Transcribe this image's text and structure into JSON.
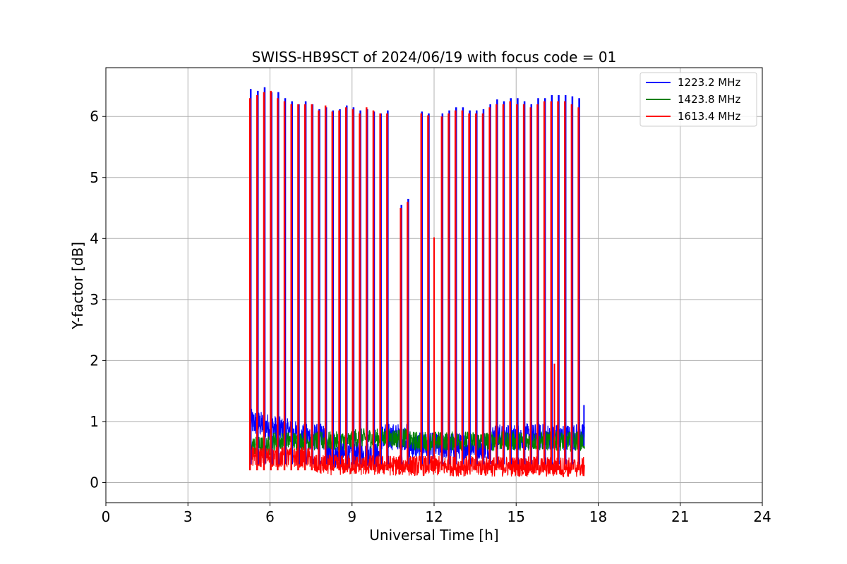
{
  "chart_data": {
    "type": "line",
    "title": "SWISS-HB9SCT of 2024/06/19 with focus code = 01",
    "xlabel": "Universal Time [h]",
    "ylabel": "Y-factor [dB]",
    "xlim": [
      0,
      24
    ],
    "ylim": [
      -0.33,
      6.8
    ],
    "xticks": [
      0,
      3,
      6,
      9,
      12,
      15,
      18,
      21,
      24
    ],
    "yticks": [
      0,
      1,
      2,
      3,
      4,
      5,
      6
    ],
    "grid": true,
    "legend_position": "top-right",
    "data_range_h": [
      5.25,
      17.5
    ],
    "calibration_peak_times_h": [
      5.27,
      5.53,
      5.78,
      6.03,
      6.28,
      6.53,
      6.78,
      7.03,
      7.28,
      7.53,
      7.78,
      8.03,
      8.28,
      8.53,
      8.78,
      9.03,
      9.28,
      9.53,
      9.78,
      10.03,
      10.28,
      10.78,
      11.03,
      11.53,
      11.78,
      12.28,
      12.53,
      12.78,
      13.03,
      13.28,
      13.53,
      13.78,
      14.03,
      14.28,
      14.53,
      14.78,
      15.03,
      15.28,
      15.53,
      15.78,
      16.03,
      16.28,
      16.53,
      16.78,
      17.03,
      17.28
    ],
    "series": [
      {
        "name": "1223.2 MHz",
        "color": "#0000ff",
        "baseline_level_dB": 0.75,
        "peak_values_dB": [
          6.45,
          6.42,
          6.48,
          6.4,
          6.4,
          6.3,
          6.25,
          6.2,
          6.25,
          6.2,
          6.12,
          6.15,
          6.1,
          6.12,
          6.18,
          6.15,
          6.1,
          6.12,
          6.08,
          6.05,
          6.1,
          4.55,
          4.65,
          6.08,
          6.05,
          6.05,
          6.1,
          6.15,
          6.15,
          6.1,
          6.1,
          6.12,
          6.2,
          6.28,
          6.25,
          6.3,
          6.3,
          6.25,
          6.2,
          6.3,
          6.3,
          6.35,
          6.35,
          6.35,
          6.33,
          6.3
        ]
      },
      {
        "name": "1423.8 MHz",
        "color": "#008000",
        "baseline_level_dB": 0.68
      },
      {
        "name": "1613.4 MHz",
        "color": "#ff0000",
        "baseline_level_dB": 0.3,
        "peak_values_dB": [
          6.3,
          6.35,
          6.4,
          6.42,
          6.3,
          6.25,
          6.2,
          6.2,
          6.2,
          6.2,
          6.1,
          6.18,
          6.08,
          6.1,
          6.15,
          6.12,
          6.05,
          6.15,
          6.1,
          6.05,
          6.05,
          4.5,
          4.6,
          6.05,
          6.02,
          6.0,
          6.05,
          6.1,
          6.1,
          6.05,
          6.05,
          6.05,
          6.15,
          6.2,
          6.2,
          6.25,
          6.2,
          6.2,
          6.15,
          6.2,
          6.25,
          6.25,
          6.25,
          6.25,
          6.2,
          6.15
        ],
        "isolated_spikes": [
          {
            "x": 12.0,
            "y": 4.02
          },
          {
            "x": 16.4,
            "y": 1.95
          }
        ]
      }
    ]
  }
}
